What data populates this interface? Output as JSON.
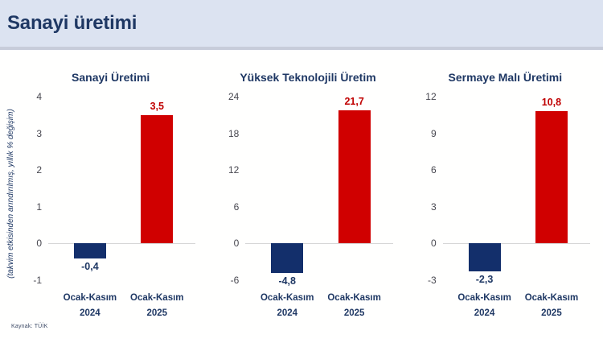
{
  "header": {
    "title": "Sanayi üretimi"
  },
  "y_axis_label": "(takvim etkisinden arındırılmış, yıllık % değişim)",
  "source": "Kaynak: TÜİK",
  "colors": {
    "accent_navy": "#1f3864",
    "bar_navy": "#132f6b",
    "bar_red": "#d00000",
    "value_red": "#c00000",
    "header_bg": "#dce3f1",
    "header_border": "#c7ccda",
    "tick_text": "#47474f",
    "axis_line": "#d6d6d6"
  },
  "chart_data": [
    {
      "type": "bar",
      "title": "Sanayi Üretimi",
      "categories": [
        "Ocak-Kasım 2024",
        "Ocak-Kasım 2025"
      ],
      "values": [
        -0.4,
        3.5
      ],
      "value_labels": [
        "-0,4",
        "3,5"
      ],
      "bar_colors": [
        "#132f6b",
        "#d00000"
      ],
      "ylim": [
        -1,
        4
      ],
      "yticks": [
        4,
        3,
        2,
        1,
        0,
        -1
      ],
      "ylabel": "(takvim etkisinden arındırılmış, yıllık % değişim)",
      "grid": false,
      "legend": false
    },
    {
      "type": "bar",
      "title": "Yüksek Teknolojili Üretim",
      "categories": [
        "Ocak-Kasım 2024",
        "Ocak-Kasım 2025"
      ],
      "values": [
        -4.8,
        21.7
      ],
      "value_labels": [
        "-4,8",
        "21,7"
      ],
      "bar_colors": [
        "#132f6b",
        "#d00000"
      ],
      "ylim": [
        -6,
        24
      ],
      "yticks": [
        24,
        18,
        12,
        6,
        0,
        -6
      ],
      "ylabel": "",
      "grid": false,
      "legend": false
    },
    {
      "type": "bar",
      "title": "Sermaye Malı Üretimi",
      "categories": [
        "Ocak-Kasım 2024",
        "Ocak-Kasım 2025"
      ],
      "values": [
        -2.3,
        10.8
      ],
      "value_labels": [
        "-2,3",
        "10,8"
      ],
      "bar_colors": [
        "#132f6b",
        "#d00000"
      ],
      "ylim": [
        -3,
        12
      ],
      "yticks": [
        12,
        9,
        6,
        3,
        0,
        -3
      ],
      "ylabel": "",
      "grid": false,
      "legend": false
    }
  ]
}
